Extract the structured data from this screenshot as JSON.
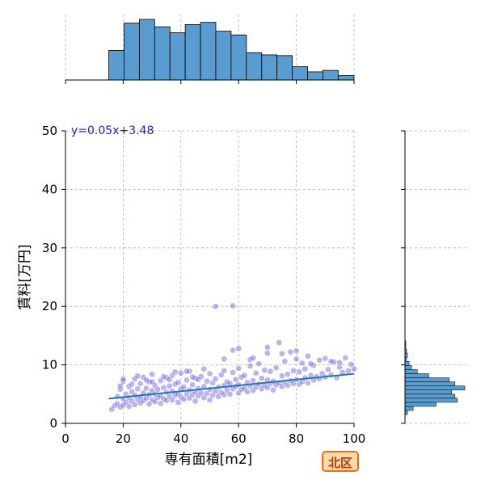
{
  "chart_data": {
    "type": "scatter",
    "xlabel": "専有面積[m2]",
    "ylabel": "賃料[万円]",
    "xlim": [
      0,
      100
    ],
    "ylim": [
      0,
      50
    ],
    "x_ticks": [
      0,
      20,
      40,
      60,
      80,
      100
    ],
    "y_ticks": [
      0,
      10,
      20,
      30,
      40,
      50
    ],
    "grid": true,
    "annotation": "y=0.05x+3.48",
    "regression": {
      "slope": 0.05,
      "intercept": 3.48,
      "x_range": [
        15,
        100
      ]
    },
    "district_label": "北区",
    "colors": {
      "points": "#5b4fd6",
      "fit_line": "#1f77b4",
      "hist_fill": "#5a9bd0",
      "annotation": "#2222bb",
      "badge_fill": "#fdd9b0",
      "badge_border": "#f26b0f",
      "grid": "#b0b0b0"
    },
    "x_histogram": {
      "bin_edges": [
        15,
        20.3,
        25.6,
        30.9,
        36.2,
        41.5,
        46.8,
        52.1,
        57.4,
        62.7,
        68.0,
        73.3,
        78.6,
        83.9,
        89.2,
        94.5,
        100
      ],
      "counts": [
        40,
        77,
        82,
        72,
        64,
        75,
        78,
        66,
        61,
        37,
        34,
        33,
        18,
        11,
        13,
        6
      ]
    },
    "y_histogram": {
      "bin_edges": [
        1.5,
        2.2,
        2.9,
        3.6,
        4.3,
        5.0,
        5.7,
        6.4,
        7.1,
        7.8,
        8.5,
        9.2,
        9.9,
        10.6,
        11.3,
        12.0,
        12.7,
        13.4,
        14.1
      ],
      "counts": [
        3,
        10,
        38,
        64,
        61,
        57,
        73,
        61,
        54,
        29,
        15,
        8,
        5,
        2,
        3,
        2,
        1,
        1
      ]
    },
    "points": [
      [
        16,
        2.4
      ],
      [
        17,
        3.0
      ],
      [
        18,
        3.4
      ],
      [
        18,
        4.6
      ],
      [
        19,
        2.8
      ],
      [
        19,
        5.8
      ],
      [
        20,
        3.1
      ],
      [
        20,
        4.2
      ],
      [
        20,
        7.2
      ],
      [
        21,
        3.6
      ],
      [
        21,
        5.0
      ],
      [
        22,
        2.9
      ],
      [
        22,
        4.4
      ],
      [
        22,
        6.3
      ],
      [
        23,
        3.8
      ],
      [
        23,
        5.4
      ],
      [
        24,
        3.2
      ],
      [
        24,
        4.8
      ],
      [
        24,
        7.6
      ],
      [
        25,
        4.1
      ],
      [
        25,
        5.9
      ],
      [
        26,
        3.5
      ],
      [
        26,
        4.5
      ],
      [
        26,
        6.8
      ],
      [
        27,
        3.9
      ],
      [
        27,
        5.2
      ],
      [
        27,
        7.9
      ],
      [
        28,
        4.3
      ],
      [
        28,
        6.0
      ],
      [
        29,
        3.3
      ],
      [
        29,
        4.9
      ],
      [
        29,
        7.1
      ],
      [
        30,
        4.0
      ],
      [
        30,
        5.6
      ],
      [
        30,
        8.4
      ],
      [
        31,
        3.7
      ],
      [
        31,
        5.0
      ],
      [
        31,
        6.5
      ],
      [
        32,
        4.4
      ],
      [
        32,
        5.8
      ],
      [
        33,
        3.4
      ],
      [
        33,
        4.7
      ],
      [
        33,
        7.3
      ],
      [
        34,
        4.2
      ],
      [
        34,
        6.1
      ],
      [
        35,
        3.9
      ],
      [
        35,
        5.3
      ],
      [
        35,
        7.8
      ],
      [
        36,
        4.6
      ],
      [
        36,
        6.4
      ],
      [
        37,
        4.0
      ],
      [
        37,
        5.5
      ],
      [
        37,
        8.2
      ],
      [
        38,
        4.8
      ],
      [
        38,
        6.7
      ],
      [
        39,
        3.6
      ],
      [
        39,
        5.1
      ],
      [
        39,
        7.0
      ],
      [
        40,
        4.5
      ],
      [
        40,
        5.9
      ],
      [
        40,
        8.6
      ],
      [
        41,
        4.1
      ],
      [
        41,
        6.2
      ],
      [
        42,
        5.0
      ],
      [
        42,
        7.4
      ],
      [
        43,
        4.3
      ],
      [
        43,
        5.7
      ],
      [
        43,
        8.9
      ],
      [
        44,
        4.9
      ],
      [
        44,
        6.6
      ],
      [
        45,
        3.8
      ],
      [
        45,
        5.4
      ],
      [
        45,
        7.7
      ],
      [
        46,
        4.7
      ],
      [
        46,
        6.0
      ],
      [
        47,
        5.2
      ],
      [
        47,
        8.0
      ],
      [
        48,
        4.4
      ],
      [
        48,
        6.3
      ],
      [
        49,
        5.1
      ],
      [
        49,
        7.2
      ],
      [
        50,
        4.0
      ],
      [
        50,
        5.8
      ],
      [
        50,
        8.5
      ],
      [
        51,
        4.8
      ],
      [
        51,
        6.9
      ],
      [
        52,
        5.5
      ],
      [
        52,
        7.6
      ],
      [
        53,
        4.6
      ],
      [
        53,
        6.2
      ],
      [
        54,
        5.3
      ],
      [
        54,
        8.3
      ],
      [
        55,
        4.9
      ],
      [
        55,
        6.5
      ],
      [
        55,
        9.0
      ],
      [
        56,
        5.7
      ],
      [
        56,
        7.1
      ],
      [
        57,
        5.0
      ],
      [
        57,
        6.8
      ],
      [
        58,
        5.9
      ],
      [
        58,
        8.7
      ],
      [
        58,
        12.5
      ],
      [
        59,
        6.3
      ],
      [
        59,
        7.5
      ],
      [
        60,
        5.2
      ],
      [
        60,
        6.6
      ],
      [
        60,
        9.4
      ],
      [
        60,
        12.8
      ],
      [
        61,
        5.8
      ],
      [
        61,
        7.9
      ],
      [
        62,
        6.0
      ],
      [
        62,
        8.2
      ],
      [
        63,
        5.4
      ],
      [
        63,
        7.0
      ],
      [
        64,
        6.4
      ],
      [
        64,
        9.8
      ],
      [
        65,
        5.6
      ],
      [
        65,
        7.3
      ],
      [
        66,
        6.2
      ],
      [
        66,
        8.6
      ],
      [
        67,
        6.7
      ],
      [
        67,
        10.2
      ],
      [
        68,
        5.9
      ],
      [
        68,
        7.7
      ],
      [
        69,
        6.5
      ],
      [
        69,
        9.1
      ],
      [
        70,
        6.1
      ],
      [
        70,
        7.4
      ],
      [
        70,
        12.0
      ],
      [
        71,
        6.8
      ],
      [
        71,
        8.9
      ],
      [
        72,
        5.7
      ],
      [
        72,
        7.2
      ],
      [
        73,
        6.6
      ],
      [
        73,
        9.5
      ],
      [
        74,
        6.9
      ],
      [
        74,
        13.8
      ],
      [
        75,
        6.3
      ],
      [
        75,
        8.1
      ],
      [
        76,
        7.0
      ],
      [
        76,
        10.6
      ],
      [
        77,
        6.5
      ],
      [
        77,
        8.4
      ],
      [
        78,
        7.3
      ],
      [
        78,
        12.2
      ],
      [
        79,
        6.8
      ],
      [
        79,
        9.0
      ],
      [
        80,
        7.5
      ],
      [
        80,
        11.0
      ],
      [
        81,
        6.7
      ],
      [
        81,
        8.8
      ],
      [
        82,
        7.1
      ],
      [
        82,
        10.3
      ],
      [
        83,
        7.8
      ],
      [
        83,
        9.3
      ],
      [
        84,
        6.9
      ],
      [
        84,
        11.5
      ],
      [
        85,
        8.2
      ],
      [
        86,
        7.4
      ],
      [
        86,
        9.9
      ],
      [
        87,
        8.0
      ],
      [
        88,
        7.6
      ],
      [
        88,
        10.8
      ],
      [
        89,
        8.5
      ],
      [
        90,
        7.9
      ],
      [
        90,
        11.1
      ],
      [
        91,
        9.2
      ],
      [
        92,
        8.3
      ],
      [
        93,
        10.5
      ],
      [
        94,
        7.8
      ],
      [
        95,
        9.6
      ],
      [
        95,
        10.4
      ],
      [
        96,
        8.7
      ],
      [
        97,
        11.2
      ],
      [
        98,
        9.0
      ],
      [
        99,
        10.1
      ],
      [
        100,
        9.3
      ],
      [
        52,
        20.0
      ],
      [
        58,
        20.1
      ],
      [
        20,
        7.6
      ],
      [
        25,
        8.1
      ],
      [
        34,
        8.0
      ],
      [
        42,
        8.9
      ],
      [
        46,
        7.5
      ],
      [
        55,
        11.0
      ],
      [
        64,
        10.9
      ],
      [
        75,
        11.9
      ],
      [
        85,
        10.2
      ],
      [
        92,
        10.6
      ],
      [
        38,
        8.8
      ],
      [
        28,
        7.4
      ],
      [
        48,
        9.3
      ],
      [
        65,
        11.2
      ],
      [
        70,
        13.0
      ],
      [
        80,
        12.4
      ],
      [
        44,
        7.9
      ],
      [
        36,
        7.5
      ],
      [
        30,
        7.1
      ],
      [
        23,
        6.7
      ],
      [
        19,
        6.4
      ]
    ]
  }
}
